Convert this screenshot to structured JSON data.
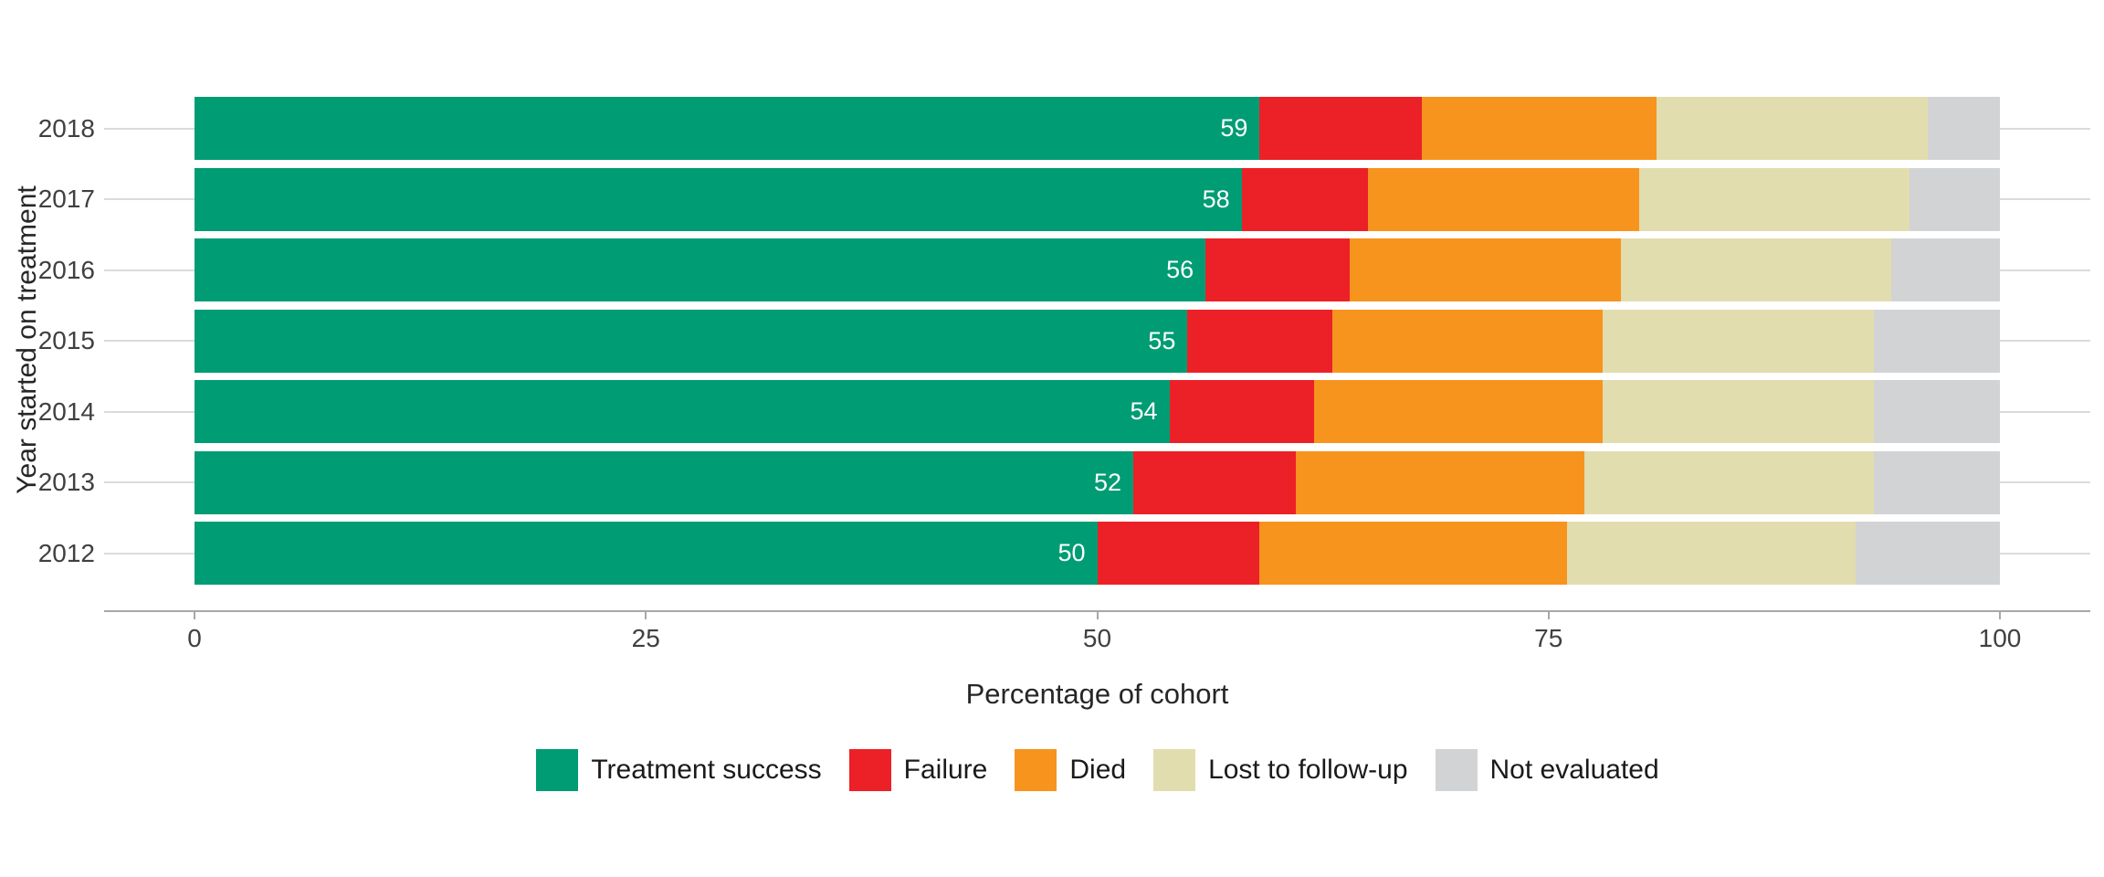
{
  "chart_data": {
    "type": "bar",
    "orientation": "horizontal",
    "stacked": true,
    "title": "",
    "xlabel": "Percentage of cohort",
    "ylabel": "Year started on treatment",
    "categories": [
      "2018",
      "2017",
      "2016",
      "2015",
      "2014",
      "2013",
      "2012"
    ],
    "series": [
      {
        "name": "Treatment success",
        "color": "#009C74",
        "values": [
          59,
          58,
          56,
          55,
          54,
          52,
          50
        ]
      },
      {
        "name": "Failure",
        "color": "#EC2127",
        "values": [
          9,
          7,
          8,
          8,
          8,
          9,
          9
        ]
      },
      {
        "name": "Died",
        "color": "#F7941E",
        "values": [
          13,
          15,
          15,
          15,
          16,
          16,
          17
        ]
      },
      {
        "name": "Lost to follow-up",
        "color": "#E2DDAE",
        "values": [
          15,
          15,
          15,
          15,
          15,
          16,
          16
        ]
      },
      {
        "name": "Not evaluated",
        "color": "#D2D3D5",
        "values": [
          4,
          5,
          6,
          7,
          7,
          7,
          8
        ]
      }
    ],
    "bar_labels": [
      "59",
      "58",
      "56",
      "55",
      "54",
      "52",
      "50"
    ],
    "bar_label_series": "Treatment success",
    "x_ticks": [
      "0",
      "25",
      "50",
      "75",
      "100"
    ],
    "x_tick_values": [
      0,
      25,
      50,
      75,
      100
    ],
    "xlim": [
      0,
      100
    ],
    "grid": "horizontal",
    "legend_position": "bottom",
    "style": {
      "gridline_color": "#dbdbdb",
      "axis_line_color": "#a8a8a8",
      "tick_label_color": "#404040",
      "axis_title_color": "#262626",
      "bar_value_label_color": "#ffffff",
      "background": "#ffffff"
    }
  }
}
